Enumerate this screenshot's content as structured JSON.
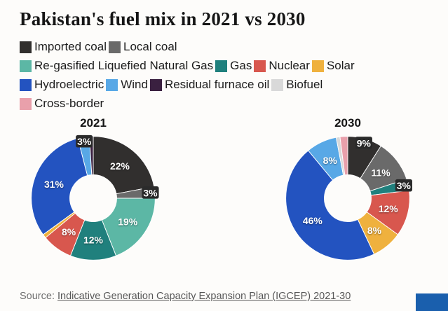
{
  "title": "Pakistan's fuel mix in 2021 vs 2030",
  "source": {
    "prefix": "Source: ",
    "link": "Indicative Generation Capacity Expansion Plan (IGCEP) 2021-30"
  },
  "colors": {
    "imported_coal": "#312f2e",
    "local_coal": "#6a6a6a",
    "rlng": "#5cb7a5",
    "gas": "#20807d",
    "nuclear": "#d8574e",
    "solar": "#efb13e",
    "hydroelectric": "#2353c0",
    "wind": "#58a8e6",
    "residual_furnace_oil": "#3a2040",
    "biofuel": "#d9d9d9",
    "cross_border": "#e9a0ab",
    "label_pill": "#2b2b2b",
    "brand_bar": "#1a5fad"
  },
  "legend": {
    "rows": [
      [
        {
          "label": "Imported coal",
          "color": "#312f2e"
        },
        {
          "label": "Local coal",
          "color": "#6a6a6a"
        }
      ],
      [
        {
          "label": "Re-gasified Liquefied Natural Gas",
          "color": "#5cb7a5"
        },
        {
          "label": "Gas",
          "color": "#20807d"
        },
        {
          "label": "Nuclear",
          "color": "#d8574e"
        },
        {
          "label": "Solar",
          "color": "#efb13e"
        }
      ],
      [
        {
          "label": "Hydroelectric",
          "color": "#2353c0"
        },
        {
          "label": "Wind",
          "color": "#58a8e6"
        },
        {
          "label": "Residual furnace oil",
          "color": "#3a2040"
        },
        {
          "label": "Biofuel",
          "color": "#d9d9d9"
        }
      ],
      [
        {
          "label": "Cross-border",
          "color": "#e9a0ab"
        }
      ]
    ]
  },
  "chart_data": [
    {
      "type": "pie",
      "donut": true,
      "title": "2021",
      "unit": "%",
      "legend_position": "top",
      "slices": [
        {
          "name": "Imported coal",
          "value": 22,
          "color": "#312f2e",
          "label": "22%",
          "pill": false
        },
        {
          "name": "Local coal",
          "value": 3,
          "color": "#6a6a6a",
          "label": "3%",
          "pill": true
        },
        {
          "name": "Re-gasified Liquefied Natural Gas",
          "value": 19,
          "color": "#5cb7a5",
          "label": "19%",
          "pill": false
        },
        {
          "name": "Gas",
          "value": 12,
          "color": "#20807d",
          "label": "12%",
          "pill": false
        },
        {
          "name": "Nuclear",
          "value": 8,
          "color": "#d8574e",
          "label": "8%",
          "pill": false
        },
        {
          "name": "Solar",
          "value": 1,
          "color": "#efb13e",
          "label": "",
          "pill": false
        },
        {
          "name": "Hydroelectric",
          "value": 31,
          "color": "#2353c0",
          "label": "31%",
          "pill": false
        },
        {
          "name": "Wind",
          "value": 3,
          "color": "#58a8e6",
          "label": "3%",
          "pill": true
        },
        {
          "name": "Residual furnace oil",
          "value": 1,
          "color": "#3a2040",
          "label": "",
          "pill": false
        }
      ]
    },
    {
      "type": "pie",
      "donut": true,
      "title": "2030",
      "unit": "%",
      "legend_position": "top",
      "slices": [
        {
          "name": "Imported coal",
          "value": 9,
          "color": "#312f2e",
          "label": "9%",
          "pill": true
        },
        {
          "name": "Local coal",
          "value": 11,
          "color": "#6a6a6a",
          "label": "11%",
          "pill": false
        },
        {
          "name": "Gas",
          "value": 3,
          "color": "#20807d",
          "label": "3%",
          "pill": true
        },
        {
          "name": "Nuclear",
          "value": 12,
          "color": "#d8574e",
          "label": "12%",
          "pill": false
        },
        {
          "name": "Solar",
          "value": 8,
          "color": "#efb13e",
          "label": "8%",
          "pill": false
        },
        {
          "name": "Hydroelectric",
          "value": 46,
          "color": "#2353c0",
          "label": "46%",
          "pill": false
        },
        {
          "name": "Wind",
          "value": 8,
          "color": "#58a8e6",
          "label": "8%",
          "pill": false
        },
        {
          "name": "Biofuel",
          "value": 1,
          "color": "#d9d9d9",
          "label": "",
          "pill": false
        },
        {
          "name": "Cross-border",
          "value": 2,
          "color": "#e9a0ab",
          "label": "",
          "pill": false
        }
      ]
    }
  ]
}
